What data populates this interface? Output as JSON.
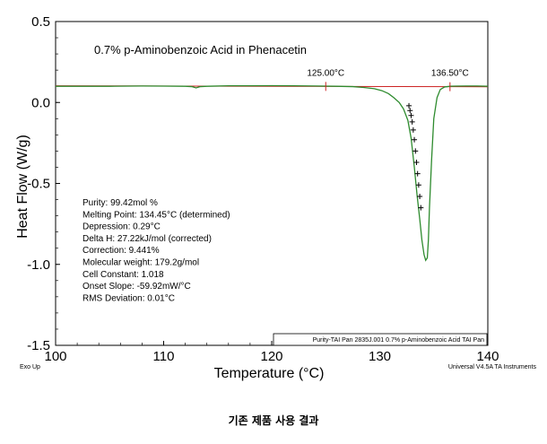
{
  "chart_data": {
    "type": "line",
    "title": "0.7% p-Aminobenzoic Acid in Phenacetin",
    "xlabel": "Temperature (°C)",
    "ylabel": "Heat Flow (W/g)",
    "xlim": [
      100,
      140
    ],
    "ylim": [
      -1.5,
      0.5
    ],
    "x_ticks": [
      100,
      110,
      120,
      130,
      140
    ],
    "x_tick_labels": [
      "100",
      "110",
      "120",
      "130",
      "140"
    ],
    "y_ticks": [
      0.5,
      0.0,
      -0.5,
      -1.0,
      -1.5
    ],
    "y_tick_labels": [
      "0.5",
      "0.0",
      "-0.5",
      "-1.0",
      "-1.5"
    ],
    "grid": false,
    "series": [
      {
        "color": "#2e8b2e",
        "x": [
          100,
          105,
          108,
          110,
          112,
          112.6,
          113,
          113.4,
          114,
          116,
          118,
          120,
          122,
          124,
          126,
          127.5,
          128.5,
          129.5,
          130.2,
          130.8,
          131.3,
          131.8,
          132.2,
          132.6,
          132.9,
          133.2,
          133.45,
          133.7,
          133.9,
          134.1,
          134.25,
          134.4,
          134.5,
          134.6,
          134.8,
          135.0,
          135.3,
          135.6,
          136.0,
          136.5,
          137,
          138,
          139,
          140
        ],
        "y": [
          0.1,
          0.1,
          0.102,
          0.101,
          0.1,
          0.098,
          0.09,
          0.098,
          0.1,
          0.103,
          0.103,
          0.104,
          0.103,
          0.102,
          0.1,
          0.098,
          0.093,
          0.085,
          0.073,
          0.055,
          0.03,
          0.0,
          -0.04,
          -0.11,
          -0.22,
          -0.4,
          -0.57,
          -0.72,
          -0.85,
          -0.94,
          -0.975,
          -0.96,
          -0.85,
          -0.65,
          -0.35,
          -0.1,
          0.03,
          0.08,
          0.096,
          0.1,
          0.101,
          0.102,
          0.102,
          0.1
        ]
      },
      {
        "color": "#000000",
        "x": [
          132.7,
          132.8,
          132.9,
          133.0,
          133.1,
          133.2,
          133.3,
          133.4,
          133.5,
          133.6,
          133.7,
          133.8
        ],
        "y": [
          -0.02,
          -0.05,
          -0.08,
          -0.12,
          -0.17,
          -0.23,
          -0.3,
          -0.37,
          -0.44,
          -0.51,
          -0.58,
          -0.65
        ]
      }
    ],
    "baseline": {
      "color": "#cc2222",
      "x": [
        100,
        140
      ],
      "y": [
        0.103,
        0.097
      ]
    },
    "markers": [
      {
        "x": 125.0,
        "label": "125.00°C"
      },
      {
        "x": 136.5,
        "label": "136.50°C"
      }
    ],
    "annotations": [
      "Purity: 99.42mol %",
      "Melting Point: 134.45°C (determined)",
      "Depression: 0.29°C",
      "Delta H: 27.22kJ/mol (corrected)",
      "Correction: 9.441%",
      "Molecular weight: 179.2g/mol",
      "Cell Constant: 1.018",
      "Onset Slope: -59.92mW/°C",
      "RMS Deviation: 0.01°C"
    ],
    "file_label": "Purity-TAI Pan 2835J.001  0.7% p-Aminobenzoic Acid TAI Pan",
    "exo_label": "Exo Up",
    "instrument_label": "Universal V4.5A TA Instruments"
  },
  "caption": "기존 제품 사용 결과"
}
